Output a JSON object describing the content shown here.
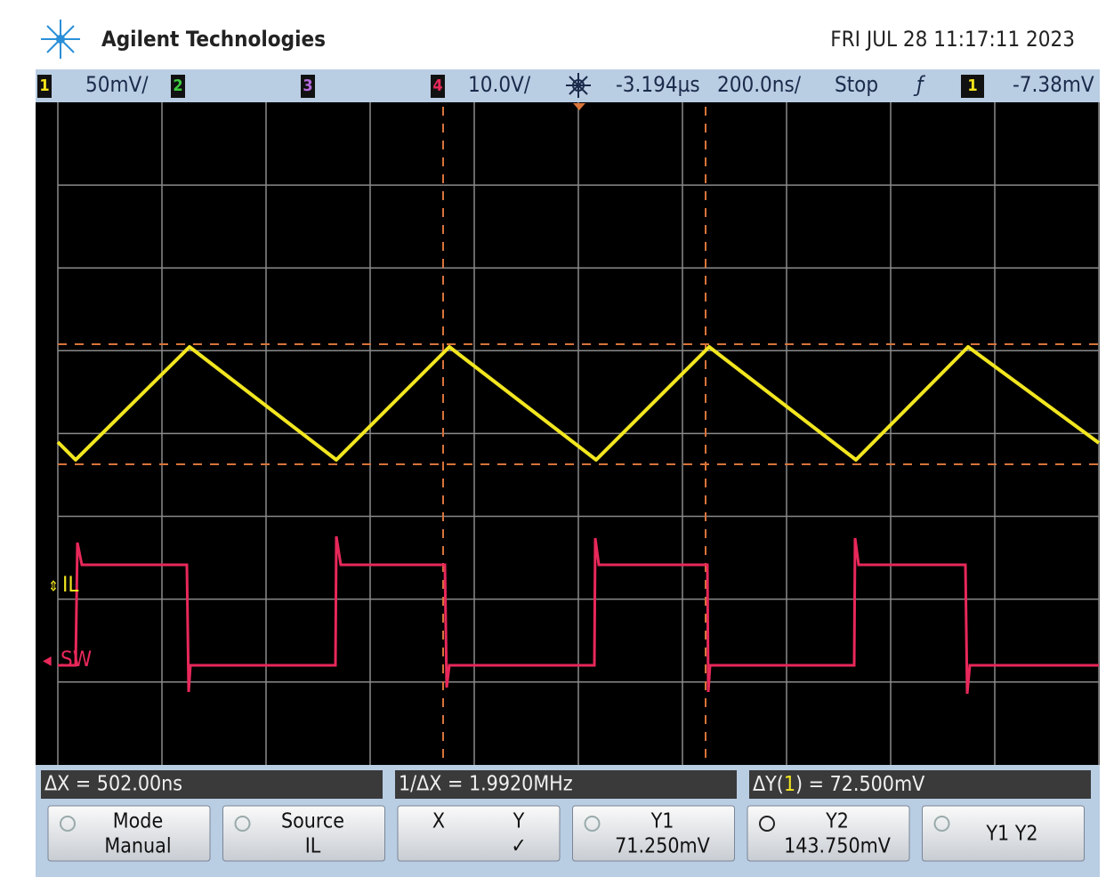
{
  "header": {
    "brand": "Agilent Technologies",
    "datetime": "FRI JUL 28 11:17:11 2023"
  },
  "status_bar": {
    "ch1": "1",
    "ch1_scale": "50mV/",
    "ch2": "2",
    "ch3": "3",
    "ch4": "4",
    "ch4_scale": "10.0V/",
    "delay": "-3.194µs",
    "timebase": "200.0ns/",
    "run_state": "Stop",
    "trigger_source": "1",
    "trigger_level": "-7.38mV"
  },
  "trace_labels": {
    "ch1": "IL",
    "ch4": "SW"
  },
  "measurements": {
    "delta_x": "ΔX = 502.00ns",
    "inv_delta_x": "1/ΔX = 1.9920MHz",
    "delta_y_prefix": "ΔY(",
    "delta_y_channel": "1",
    "delta_y_value": ") = 72.500mV"
  },
  "softkeys": [
    {
      "top": "Mode",
      "bottom": "Manual"
    },
    {
      "top": "Source",
      "bottom": "IL"
    },
    {
      "top": "X",
      "mid": "Y",
      "bottom": "✓"
    },
    {
      "top": "Y1",
      "bottom": "71.250mV"
    },
    {
      "top": "Y2",
      "bottom": "143.750mV"
    },
    {
      "top": "Y1 Y2"
    }
  ]
}
